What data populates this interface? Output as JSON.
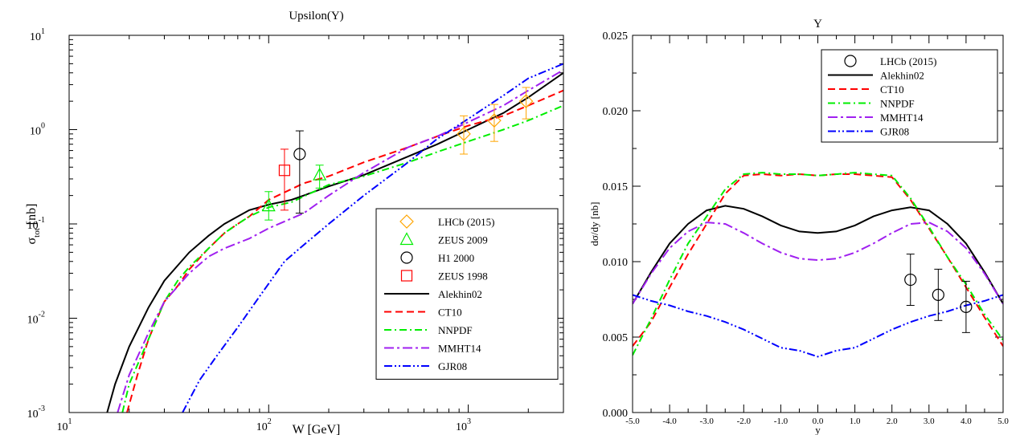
{
  "chart_data": [
    {
      "type": "line",
      "title": "Upsilon(Y)",
      "xlabel": "W [GeV]",
      "ylabel_main": "σ",
      "ylabel_sub": "tot",
      "ylabel_unit": "[nb]",
      "xscale": "log",
      "yscale": "log",
      "xlim": [
        10,
        3000
      ],
      "ylim": [
        0.001,
        10
      ],
      "x_ticks": [
        {
          "v": 10,
          "base": "10",
          "exp": "1"
        },
        {
          "v": 100,
          "base": "10",
          "exp": "2"
        },
        {
          "v": 1000,
          "base": "10",
          "exp": "3"
        }
      ],
      "y_ticks": [
        {
          "v": 0.001,
          "base": "10",
          "exp": "-3"
        },
        {
          "v": 0.01,
          "base": "10",
          "exp": "-2"
        },
        {
          "v": 0.1,
          "base": "10",
          "exp": "-1"
        },
        {
          "v": 1,
          "base": "10",
          "exp": "0"
        },
        {
          "v": 10,
          "base": "10",
          "exp": "1"
        }
      ],
      "legend_position": "lower-right",
      "series": [
        {
          "name": "Alekhin02",
          "color": "#000000",
          "dash": "",
          "x": [
            15.5,
            17,
            20,
            25,
            30,
            40,
            50,
            60,
            70,
            80,
            100,
            130,
            150,
            200,
            300,
            500,
            700,
            1000,
            1500,
            2000,
            3000
          ],
          "y": [
            0.001,
            0.002,
            0.005,
            0.013,
            0.025,
            0.05,
            0.075,
            0.1,
            0.12,
            0.14,
            0.16,
            0.18,
            0.2,
            0.25,
            0.33,
            0.52,
            0.7,
            1.0,
            1.5,
            2.2,
            4.0
          ]
        },
        {
          "name": "CT10",
          "color": "#ff0000",
          "dash": "9,5",
          "x": [
            19.5,
            22,
            25,
            30,
            35,
            40,
            50,
            60,
            70,
            80,
            100,
            150,
            200,
            300,
            500,
            700,
            1000,
            1500,
            2000,
            3000
          ],
          "y": [
            0.001,
            0.0025,
            0.006,
            0.015,
            0.022,
            0.033,
            0.055,
            0.08,
            0.1,
            0.12,
            0.18,
            0.27,
            0.32,
            0.45,
            0.65,
            0.85,
            1.1,
            1.4,
            1.8,
            2.6
          ]
        },
        {
          "name": "NNPDF",
          "color": "#00ee00",
          "dash": "9,4,2,4",
          "x": [
            18.5,
            20,
            25,
            30,
            35,
            40,
            50,
            60,
            70,
            80,
            100,
            130,
            200,
            300,
            500,
            700,
            1000,
            1500,
            2000,
            3000
          ],
          "y": [
            0.001,
            0.002,
            0.006,
            0.015,
            0.025,
            0.035,
            0.055,
            0.08,
            0.1,
            0.12,
            0.15,
            0.17,
            0.26,
            0.32,
            0.45,
            0.58,
            0.75,
            1.0,
            1.25,
            1.8
          ]
        },
        {
          "name": "MMHT14",
          "color": "#a020f0",
          "dash": "12,4,3,4",
          "x": [
            17.5,
            20,
            25,
            30,
            40,
            50,
            60,
            80,
            100,
            150,
            200,
            300,
            500,
            700,
            1000,
            1500,
            2000,
            3000
          ],
          "y": [
            0.001,
            0.0025,
            0.007,
            0.015,
            0.03,
            0.045,
            0.055,
            0.07,
            0.09,
            0.13,
            0.2,
            0.35,
            0.65,
            0.85,
            1.2,
            1.8,
            2.6,
            4.3
          ]
        },
        {
          "name": "GJR08",
          "color": "#0000ff",
          "dash": "10,3,2,3,2,3",
          "x": [
            37,
            45,
            55,
            70,
            90,
            120,
            150,
            200,
            300,
            500,
            700,
            1000,
            1500,
            2000,
            3000
          ],
          "y": [
            0.001,
            0.0022,
            0.004,
            0.008,
            0.017,
            0.04,
            0.06,
            0.1,
            0.2,
            0.45,
            0.8,
            1.3,
            2.3,
            3.5,
            5.0
          ]
        }
      ],
      "points": [
        {
          "name": "LHCb (2015)",
          "marker": "diamond",
          "color": "#ffa500",
          "data": [
            {
              "x": 950,
              "y": 0.9,
              "lo": 0.55,
              "hi": 1.4
            },
            {
              "x": 1350,
              "y": 1.25,
              "lo": 0.75,
              "hi": 1.85
            },
            {
              "x": 1950,
              "y": 2.0,
              "lo": 1.3,
              "hi": 2.8
            }
          ]
        },
        {
          "name": "ZEUS 2009",
          "color": "#00ee00",
          "marker": "triangle",
          "data": [
            {
              "x": 100,
              "y": 0.155,
              "lo": 0.11,
              "hi": 0.22
            },
            {
              "x": 180,
              "y": 0.33,
              "lo": 0.24,
              "hi": 0.42
            }
          ]
        },
        {
          "name": "H1 2000",
          "color": "#000000",
          "marker": "circle",
          "data": [
            {
              "x": 143,
              "y": 0.55,
              "lo": 0.13,
              "hi": 0.97
            }
          ]
        },
        {
          "name": "ZEUS 1998",
          "color": "#ff0000",
          "marker": "square",
          "data": [
            {
              "x": 120,
              "y": 0.37,
              "lo": 0.14,
              "hi": 0.62
            }
          ]
        }
      ]
    },
    {
      "type": "line",
      "title": "Y",
      "xlabel": "y",
      "ylabel": "dσ/dy [nb]",
      "xlim": [
        -5,
        5
      ],
      "ylim": [
        0,
        0.025
      ],
      "x_tick_labels": [
        "-5.0",
        "-4.0",
        "-3.0",
        "-2.0",
        "-1.0",
        "0.0",
        "1.0",
        "2.0",
        "3.0",
        "4.0",
        "5.0"
      ],
      "y_tick_labels": [
        "0.000",
        "0.005",
        "0.010",
        "0.015",
        "0.020",
        "0.025"
      ],
      "legend_position": "top-right",
      "series": [
        {
          "name": "Alekhin02",
          "color": "#000000",
          "dash": "",
          "x": [
            -5,
            -4.5,
            -4,
            -3.5,
            -3,
            -2.5,
            -2,
            -1.5,
            -1,
            -0.5,
            0,
            0.5,
            1,
            1.5,
            2,
            2.5,
            3,
            3.5,
            4,
            4.5,
            5
          ],
          "y": [
            0.0072,
            0.0093,
            0.0112,
            0.0125,
            0.0134,
            0.0137,
            0.0135,
            0.013,
            0.0124,
            0.012,
            0.0119,
            0.012,
            0.0124,
            0.013,
            0.0134,
            0.0136,
            0.0134,
            0.0125,
            0.0112,
            0.0093,
            0.0072
          ]
        },
        {
          "name": "CT10",
          "color": "#ff0000",
          "dash": "9,5",
          "x": [
            -5,
            -4.5,
            -4,
            -3.5,
            -3,
            -2.5,
            -2,
            -1.5,
            -1,
            -0.5,
            0,
            0.5,
            1,
            1.5,
            2,
            2.5,
            3,
            3.5,
            4,
            4.5,
            5
          ],
          "y": [
            0.0044,
            0.006,
            0.0083,
            0.0105,
            0.0125,
            0.0145,
            0.0157,
            0.0158,
            0.0157,
            0.0158,
            0.0157,
            0.0158,
            0.0158,
            0.0157,
            0.0156,
            0.0141,
            0.0122,
            0.0103,
            0.0083,
            0.0063,
            0.0044
          ]
        },
        {
          "name": "NNPDF",
          "color": "#00ee00",
          "dash": "9,4,2,4",
          "x": [
            -5,
            -4.5,
            -4,
            -3.5,
            -3,
            -2.5,
            -2,
            -1.5,
            -1,
            -0.5,
            0,
            0.5,
            1,
            1.5,
            2,
            2.5,
            3,
            3.5,
            4,
            4.5,
            5
          ],
          "y": [
            0.0038,
            0.0062,
            0.0088,
            0.0112,
            0.013,
            0.0148,
            0.0158,
            0.0159,
            0.0158,
            0.0158,
            0.0157,
            0.0158,
            0.0159,
            0.0158,
            0.0157,
            0.0142,
            0.0123,
            0.0103,
            0.0085,
            0.0065,
            0.0048
          ]
        },
        {
          "name": "MMHT14",
          "color": "#a020f0",
          "dash": "12,4,3,4",
          "x": [
            -5,
            -4.5,
            -4,
            -3.5,
            -3,
            -2.5,
            -2,
            -1.5,
            -1,
            -0.5,
            0,
            0.5,
            1,
            1.5,
            2,
            2.5,
            3,
            3.5,
            4,
            4.5,
            5
          ],
          "y": [
            0.0072,
            0.0092,
            0.0109,
            0.012,
            0.0126,
            0.0125,
            0.0119,
            0.0112,
            0.0106,
            0.0102,
            0.0101,
            0.0102,
            0.0106,
            0.0112,
            0.0119,
            0.0125,
            0.0126,
            0.012,
            0.0109,
            0.0092,
            0.0072
          ]
        },
        {
          "name": "GJR08",
          "color": "#0000ff",
          "dash": "10,3,2,3,2,3",
          "x": [
            -5,
            -4.5,
            -4,
            -3.5,
            -3,
            -2.5,
            -2,
            -1.5,
            -1,
            -0.5,
            0,
            0.5,
            1,
            1.5,
            2,
            2.5,
            3,
            3.5,
            4,
            4.5,
            5
          ],
          "y": [
            0.0078,
            0.0074,
            0.0071,
            0.0067,
            0.0064,
            0.006,
            0.0055,
            0.0049,
            0.0043,
            0.0041,
            0.0037,
            0.0041,
            0.0043,
            0.0049,
            0.0055,
            0.006,
            0.0064,
            0.0067,
            0.0071,
            0.0074,
            0.0078
          ]
        }
      ],
      "points": [
        {
          "name": "LHCb (2015)",
          "marker": "circle",
          "color": "#000000",
          "data": [
            {
              "x": 2.5,
              "y": 0.0088,
              "lo": 0.0071,
              "hi": 0.0105
            },
            {
              "x": 3.25,
              "y": 0.0078,
              "lo": 0.0061,
              "hi": 0.0095
            },
            {
              "x": 4.0,
              "y": 0.007,
              "lo": 0.0053,
              "hi": 0.0087
            }
          ]
        }
      ]
    }
  ]
}
